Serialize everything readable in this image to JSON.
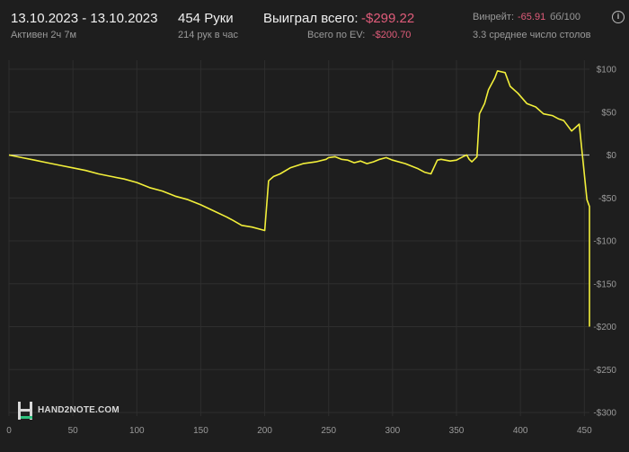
{
  "header": {
    "date_range": "13.10.2023 - 13.10.2023",
    "active": "Активен 2ч 7м",
    "hands": "454 Руки",
    "hands_per_hour": "214 рук в час",
    "won_label": "Выиграл всего:",
    "won_value": "-$299.22",
    "ev_label": "Всего по EV:",
    "ev_value": "-$200.70",
    "winrate_label": "Винрейт:",
    "winrate_value": "-65.91",
    "winrate_unit": "бб/100",
    "tables": "3.3 среднее число столов",
    "info_icon": "i"
  },
  "watermark": {
    "text": "HAND2NOTE.COM",
    "icon": "hand2note-logo-icon"
  },
  "colors": {
    "background": "#1e1e1e",
    "grid": "#2e2e2e",
    "zero_line": "#b8b8b8",
    "yellow": "#f2ef3a",
    "blue": "#4a90d9",
    "green": "#2ec27e",
    "pink": "#d94a7a",
    "negative": "#e05c7a"
  },
  "chart_data": {
    "type": "line",
    "xlabel": "",
    "ylabel": "",
    "xlim": [
      0,
      454
    ],
    "ylim": [
      -300,
      100
    ],
    "x_ticks": [
      0,
      50,
      100,
      150,
      200,
      250,
      300,
      350,
      400,
      450
    ],
    "y_ticks": [
      100,
      50,
      0,
      -50,
      -100,
      -150,
      -200,
      -250,
      -300
    ],
    "y_tick_labels": [
      "$100",
      "$50",
      "$0",
      "-$50",
      "-$100",
      "-$150",
      "-$200",
      "-$250",
      "-$300"
    ],
    "grid": true,
    "legend": "none",
    "series": [
      {
        "color": "#f2ef3a",
        "points": [
          [
            0,
            0
          ],
          [
            10,
            -3
          ],
          [
            20,
            -6
          ],
          [
            30,
            -9
          ],
          [
            40,
            -12
          ],
          [
            50,
            -15
          ],
          [
            60,
            -18
          ],
          [
            70,
            -22
          ],
          [
            80,
            -25
          ],
          [
            90,
            -28
          ],
          [
            100,
            -32
          ],
          [
            110,
            -38
          ],
          [
            120,
            -42
          ],
          [
            130,
            -48
          ],
          [
            140,
            -52
          ],
          [
            150,
            -58
          ],
          [
            160,
            -65
          ],
          [
            170,
            -72
          ],
          [
            175,
            -76
          ],
          [
            182,
            -82
          ],
          [
            190,
            -84
          ],
          [
            200,
            -88
          ],
          [
            203,
            -30
          ],
          [
            207,
            -25
          ],
          [
            212,
            -22
          ],
          [
            220,
            -15
          ],
          [
            230,
            -10
          ],
          [
            240,
            -8
          ],
          [
            248,
            -5
          ],
          [
            250,
            -3
          ],
          [
            255,
            -2
          ],
          [
            260,
            -5
          ],
          [
            265,
            -6
          ],
          [
            270,
            -9
          ],
          [
            275,
            -7
          ],
          [
            280,
            -10
          ],
          [
            285,
            -8
          ],
          [
            290,
            -5
          ],
          [
            295,
            -3
          ],
          [
            300,
            -6
          ],
          [
            310,
            -10
          ],
          [
            320,
            -16
          ],
          [
            325,
            -20
          ],
          [
            330,
            -22
          ],
          [
            335,
            -6
          ],
          [
            338,
            -5
          ],
          [
            345,
            -7
          ],
          [
            350,
            -6
          ],
          [
            355,
            -2
          ],
          [
            358,
            0
          ],
          [
            360,
            -5
          ],
          [
            362,
            -8
          ],
          [
            364,
            -5
          ],
          [
            366,
            -2
          ],
          [
            368,
            48
          ],
          [
            372,
            60
          ],
          [
            375,
            76
          ],
          [
            380,
            90
          ],
          [
            382,
            98
          ],
          [
            388,
            96
          ],
          [
            392,
            80
          ],
          [
            398,
            72
          ],
          [
            405,
            60
          ],
          [
            412,
            56
          ],
          [
            418,
            48
          ],
          [
            425,
            46
          ],
          [
            430,
            42
          ],
          [
            434,
            40
          ],
          [
            440,
            28
          ],
          [
            446,
            36
          ],
          [
            452,
            -52
          ],
          [
            454,
            -60
          ],
          [
            454,
            -100
          ],
          [
            454,
            -200
          ]
        ]
      }
    ]
  }
}
